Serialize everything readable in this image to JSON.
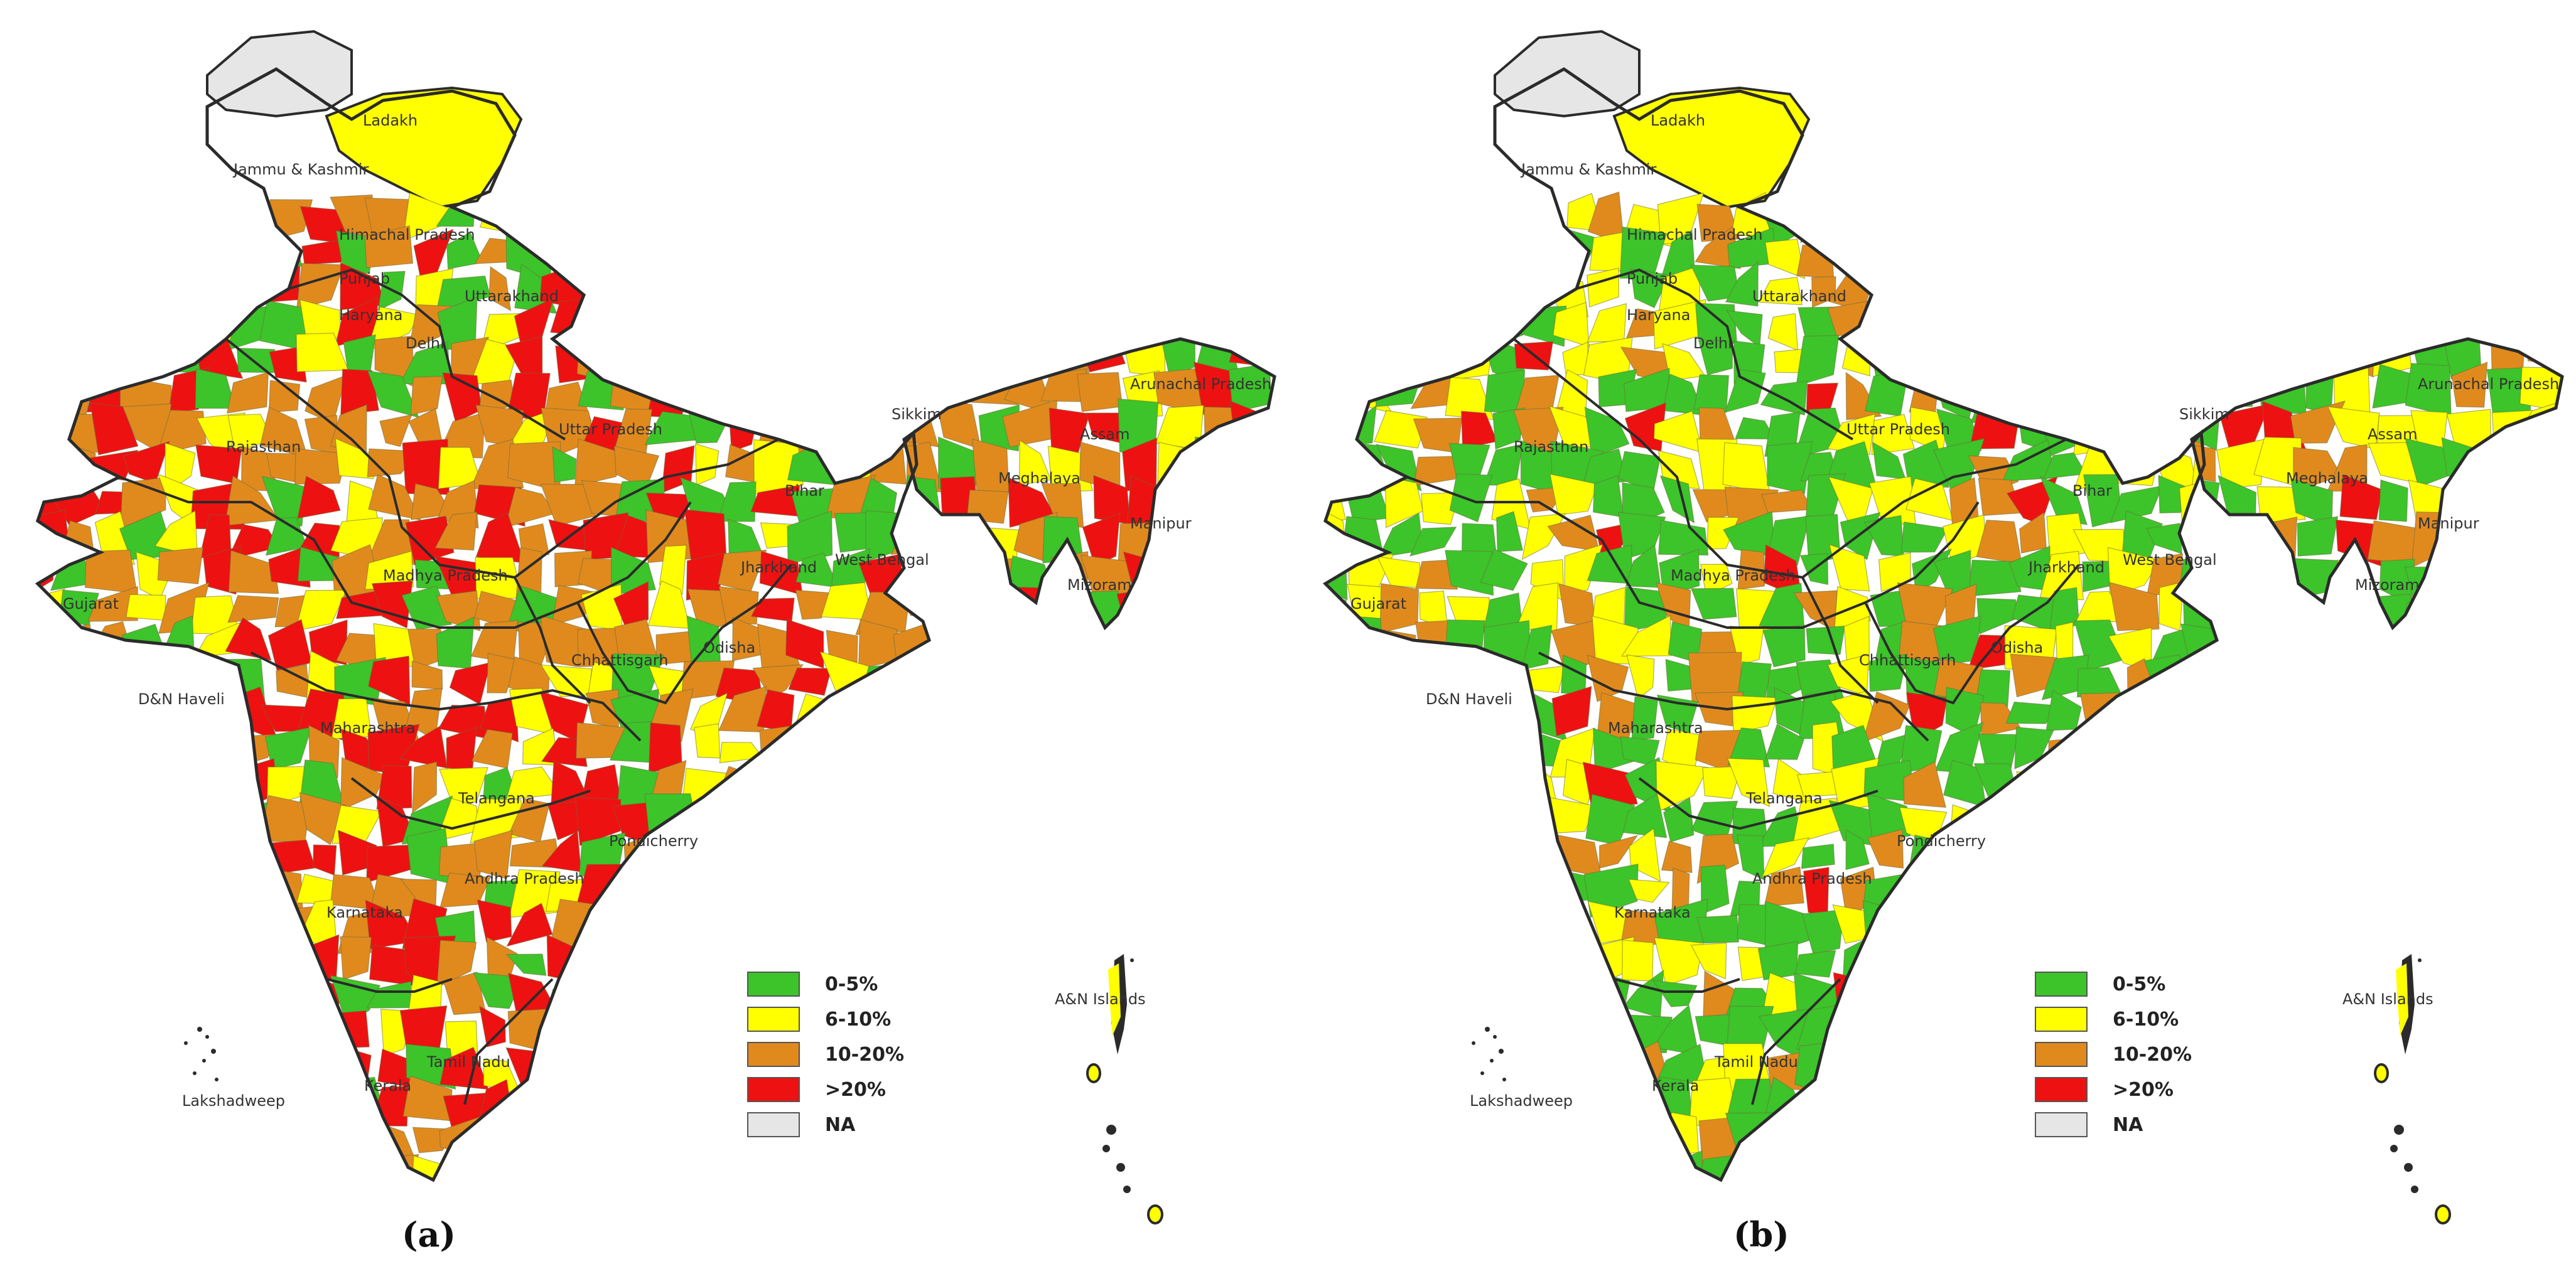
{
  "panels": [
    {
      "label": "(a)",
      "region_colors": [
        "green",
        "red",
        "orange",
        "red",
        "orange",
        "yellow",
        "red",
        "orange",
        "red",
        "green",
        "orange",
        "yellow",
        "red",
        "orange",
        "green",
        "yellow",
        "orange",
        "red",
        "green",
        "orange"
      ]
    },
    {
      "label": "(b)",
      "region_colors": [
        "green",
        "yellow",
        "green",
        "orange",
        "yellow",
        "green",
        "orange",
        "green",
        "yellow",
        "green",
        "orange",
        "green",
        "yellow",
        "green",
        "orange",
        "yellow",
        "green",
        "red",
        "green",
        "yellow"
      ]
    }
  ],
  "place_labels": {
    "ladakh": "Ladakh",
    "jammu_kashmir": "Jammu & Kashmir",
    "himachal_pradesh": "Himachal Pradesh",
    "punjab": "Punjab",
    "haryana": "Haryana",
    "delhi": "Delhi",
    "uttarakhand": "Uttarakhand",
    "rajasthan": "Rajasthan",
    "uttar_pradesh": "Uttar Pradesh",
    "bihar": "Bihar",
    "sikkim": "Sikkim",
    "arunachal_pradesh": "Arunachal Pradesh",
    "assam": "Assam",
    "meghalaya": "Meghalaya",
    "manipur": "Manipur",
    "mizoram": "Mizoram",
    "gujarat": "Gujarat",
    "madhya_pradesh": "Madhya Pradesh",
    "jharkhand": "Jharkhand",
    "west_bengal": "West Bengal",
    "chhattisgarh": "Chhattisgarh",
    "odisha": "Odisha",
    "dnh": "D&N Haveli",
    "maharashtra": "Maharashtra",
    "telangana": "Telangana",
    "puducherry": "Pondicherry",
    "andhra_pradesh": "Andhra Pradesh",
    "karnataka": "Karnataka",
    "kerala": "Kerala",
    "tamil_nadu": "Tamil Nadu",
    "lakshadweep": "Lakshadweep",
    "andaman": "A&N Islands"
  },
  "legend": [
    {
      "label": "0-5%",
      "color": "#3cc42a"
    },
    {
      "label": "6-10%",
      "color": "#ffff00"
    },
    {
      "label": "10-20%",
      "color": "#e08a1e"
    },
    {
      "label": ">20%",
      "color": "#ee1111"
    },
    {
      "label": "NA",
      "color": "#e6e6e6"
    }
  ],
  "colors": {
    "green": "#3cc42a",
    "yellow": "#ffff00",
    "orange": "#e08a1e",
    "red": "#ee1111",
    "na": "#e6e6e6",
    "border": "#2b2b2b"
  }
}
